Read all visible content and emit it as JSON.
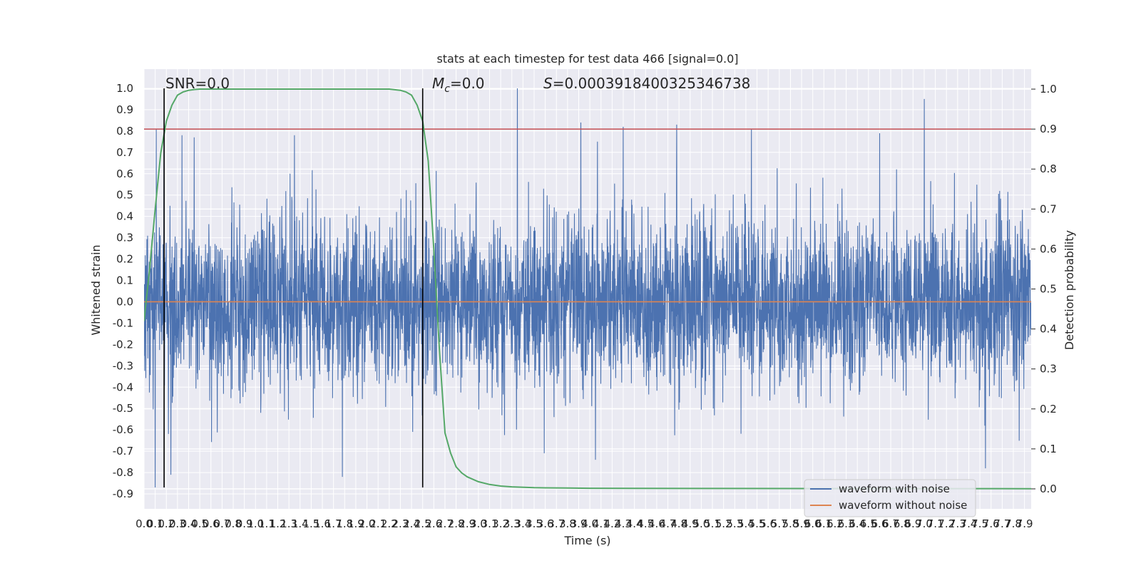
{
  "chart_data": {
    "type": "line",
    "title": "stats at each timestep for test data 466 [signal=0.0]",
    "xlabel": "Time (s)",
    "ylabel": "Whitened strain",
    "y2label": "Detection probability",
    "xlim": [
      0.0,
      7.96
    ],
    "ylim": [
      -0.97,
      1.09
    ],
    "y2lim": [
      -0.05,
      1.05
    ],
    "x_ticks": [
      "0.0",
      "0.1",
      "0.2",
      "0.3",
      "0.4",
      "0.5",
      "0.6",
      "0.7",
      "0.8",
      "0.9",
      "1.0",
      "1.1",
      "1.2",
      "1.3",
      "1.4",
      "1.5",
      "1.6",
      "1.7",
      "1.8",
      "1.9",
      "2.0",
      "2.1",
      "2.2",
      "2.3",
      "2.4",
      "2.5",
      "2.6",
      "2.7",
      "2.8",
      "2.9",
      "3.0",
      "3.1",
      "3.2",
      "3.3",
      "3.4",
      "3.5",
      "3.6",
      "3.7",
      "3.8",
      "3.9",
      "4.0",
      "4.1",
      "4.2",
      "4.3",
      "4.4",
      "4.5",
      "4.6",
      "4.7",
      "4.8",
      "4.9",
      "5.0",
      "5.1",
      "5.2",
      "5.3",
      "5.4",
      "5.5",
      "5.6",
      "5.7",
      "5.8",
      "5.9",
      "6.0",
      "6.1",
      "6.2",
      "6.3",
      "6.4",
      "6.5",
      "6.6",
      "6.7",
      "6.8",
      "6.9",
      "7.0",
      "7.1",
      "7.2",
      "7.3",
      "7.4",
      "7.5",
      "7.6",
      "7.7",
      "7.8",
      "7.9"
    ],
    "y_ticks": [
      "1.0",
      "0.9",
      "0.8",
      "0.7",
      "0.6",
      "0.5",
      "0.4",
      "0.3",
      "0.2",
      "0.1",
      "0.0",
      "-0.1",
      "-0.2",
      "-0.3",
      "-0.4",
      "-0.5",
      "-0.6",
      "-0.7",
      "-0.8",
      "-0.9"
    ],
    "y2_ticks": [
      "1.0",
      "0.9",
      "0.8",
      "0.7",
      "0.6",
      "0.5",
      "0.4",
      "0.3",
      "0.2",
      "0.1",
      "0.0"
    ],
    "threshold_line": {
      "y": 0.9,
      "color": "#c44e52"
    },
    "vertical_markers": {
      "x": [
        0.18,
        2.5
      ],
      "y_range": [
        -0.87,
        1.0
      ],
      "color": "#000000"
    },
    "annotations": {
      "snr": "SNR=0.0",
      "mc_symbol": "M",
      "mc_sub": "c",
      "mc_value": "=0.0",
      "s_symbol": "S",
      "s_value": "=0.0003918400325346738"
    },
    "series": [
      {
        "name": "waveform with noise",
        "color": "#4c72b0",
        "summary": {
          "x_range": [
            0.0,
            7.96
          ],
          "typical_abs": 0.35,
          "min": -0.87,
          "max": 1.0
        },
        "peaks": [
          {
            "x": 0.11,
            "y": 0.81
          },
          {
            "x": 0.18,
            "y": 0.84
          },
          {
            "x": 0.34,
            "y": 0.78
          },
          {
            "x": 0.45,
            "y": 0.77
          },
          {
            "x": 1.35,
            "y": 0.78
          },
          {
            "x": 3.35,
            "y": 1.0
          },
          {
            "x": 3.92,
            "y": 0.84
          },
          {
            "x": 4.3,
            "y": 0.82
          },
          {
            "x": 4.78,
            "y": 0.83
          },
          {
            "x": 5.45,
            "y": 0.81
          },
          {
            "x": 6.6,
            "y": 0.79
          },
          {
            "x": 7.0,
            "y": 0.95
          },
          {
            "x": 0.1,
            "y": -0.87
          },
          {
            "x": 0.24,
            "y": -0.81
          },
          {
            "x": 1.78,
            "y": -0.82
          },
          {
            "x": 2.5,
            "y": -0.85
          },
          {
            "x": 4.05,
            "y": -0.74
          },
          {
            "x": 7.55,
            "y": -0.78
          }
        ]
      },
      {
        "name": "waveform without noise",
        "color": "#dd8452",
        "x": [
          0.0,
          7.96
        ],
        "y": [
          0.0,
          0.0
        ]
      },
      {
        "name": "Detection probability",
        "color": "#55a868",
        "axis": "right",
        "x": [
          0.0,
          0.05,
          0.1,
          0.15,
          0.2,
          0.25,
          0.3,
          0.35,
          0.4,
          0.45,
          0.5,
          0.6,
          0.8,
          1.0,
          1.5,
          2.0,
          2.1,
          2.2,
          2.3,
          2.35,
          2.4,
          2.45,
          2.5,
          2.55,
          2.6,
          2.65,
          2.7,
          2.75,
          2.8,
          2.85,
          2.9,
          3.0,
          3.1,
          3.2,
          3.3,
          3.5,
          3.8,
          4.0,
          5.0,
          6.0,
          7.0,
          7.96
        ],
        "y": [
          0.42,
          0.55,
          0.7,
          0.84,
          0.92,
          0.96,
          0.985,
          0.993,
          0.997,
          0.999,
          1.0,
          1.0,
          1.0,
          1.0,
          1.0,
          1.0,
          1.0,
          1.0,
          0.997,
          0.993,
          0.985,
          0.96,
          0.92,
          0.82,
          0.6,
          0.35,
          0.14,
          0.09,
          0.055,
          0.04,
          0.03,
          0.018,
          0.011,
          0.007,
          0.005,
          0.003,
          0.002,
          0.0015,
          0.001,
          0.0008,
          0.0006,
          0.0005
        ]
      }
    ],
    "legend": {
      "position": "lower-right",
      "entries": [
        "waveform with noise",
        "waveform without noise"
      ]
    },
    "grid": true,
    "background": "#eaeaf2"
  }
}
